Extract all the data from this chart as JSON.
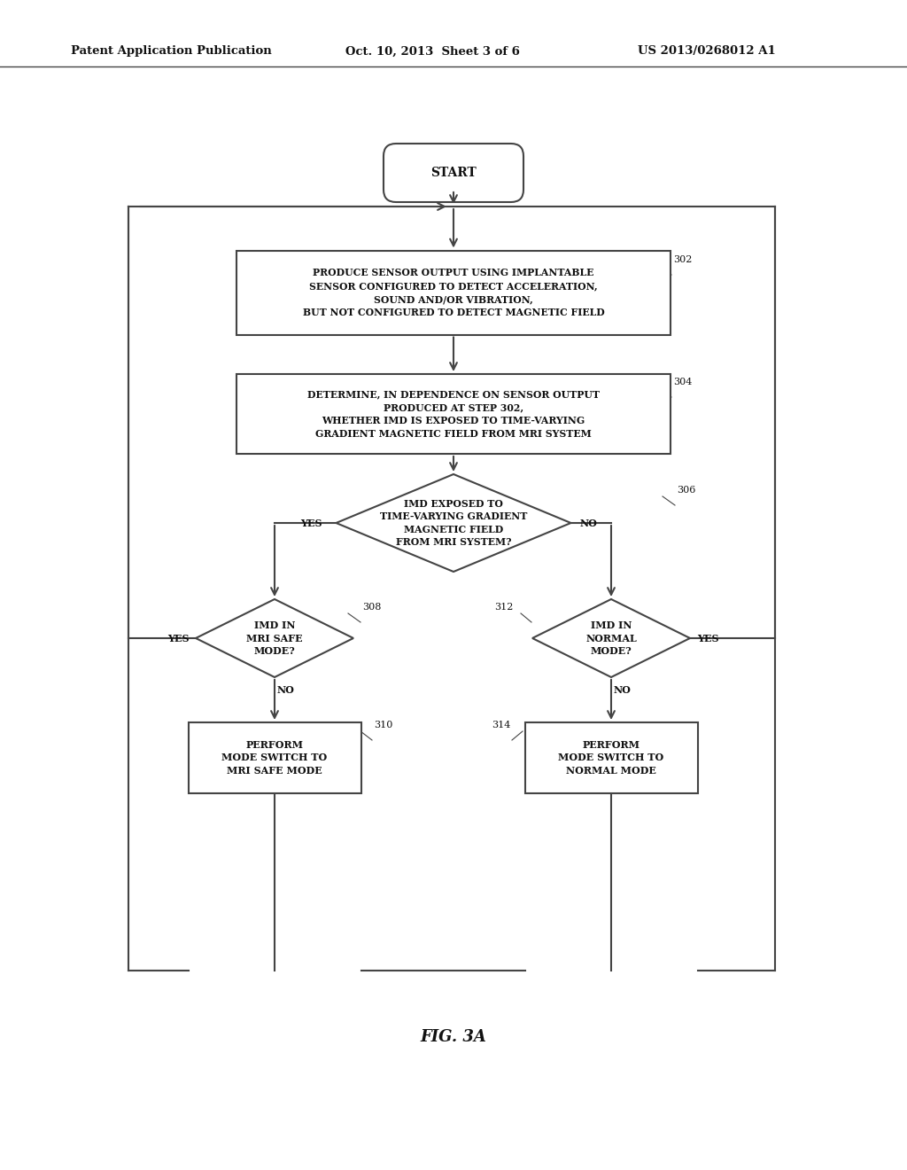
{
  "bg_color": "#ffffff",
  "line_color": "#444444",
  "text_color": "#111111",
  "header_left": "Patent Application Publication",
  "header_mid": "Oct. 10, 2013  Sheet 3 of 6",
  "header_right": "US 2013/0268012 A1",
  "fig_label": "FIG. 3A"
}
